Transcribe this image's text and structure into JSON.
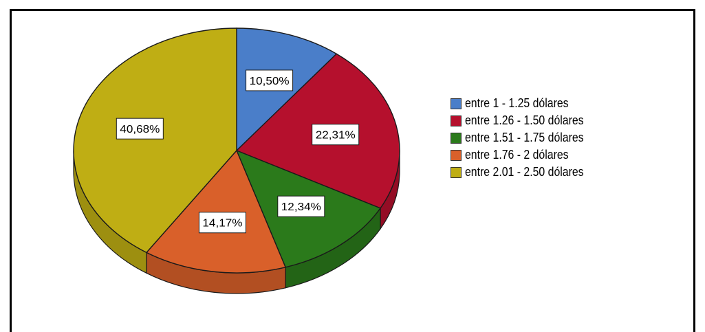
{
  "chart_data": {
    "type": "pie",
    "title": "",
    "style": "3d",
    "legend_position": "right",
    "slices": [
      {
        "label": "entre 1 - 1.25 dólares",
        "value": 10.5,
        "value_label": "10,50%",
        "color": "#4a7ec9"
      },
      {
        "label": "entre 1.26 - 1.50 dólares",
        "value": 22.31,
        "value_label": "22,31%",
        "color": "#b5102d"
      },
      {
        "label": "entre 1.51 - 1.75 dólares",
        "value": 12.34,
        "value_label": "12,34%",
        "color": "#2b7a1b"
      },
      {
        "label": "entre 1.76 - 2 dólares",
        "value": 14.17,
        "value_label": "14,17%",
        "color": "#d9602a"
      },
      {
        "label": "entre 2.01 - 2.50 dólares",
        "value": 40.68,
        "value_label": "40,68%",
        "color": "#bfae14"
      }
    ]
  },
  "legend": {
    "items": [
      {
        "label": "entre 1 - 1.25 dólares",
        "color": "#4a7ec9"
      },
      {
        "label": "entre 1.26 - 1.50 dólares",
        "color": "#b5102d"
      },
      {
        "label": "entre 1.51 - 1.75 dólares",
        "color": "#2b7a1b"
      },
      {
        "label": "entre 1.76 - 2 dólares",
        "color": "#d9602a"
      },
      {
        "label": "entre 2.01 - 2.50 dólares",
        "color": "#bfae14"
      }
    ]
  }
}
